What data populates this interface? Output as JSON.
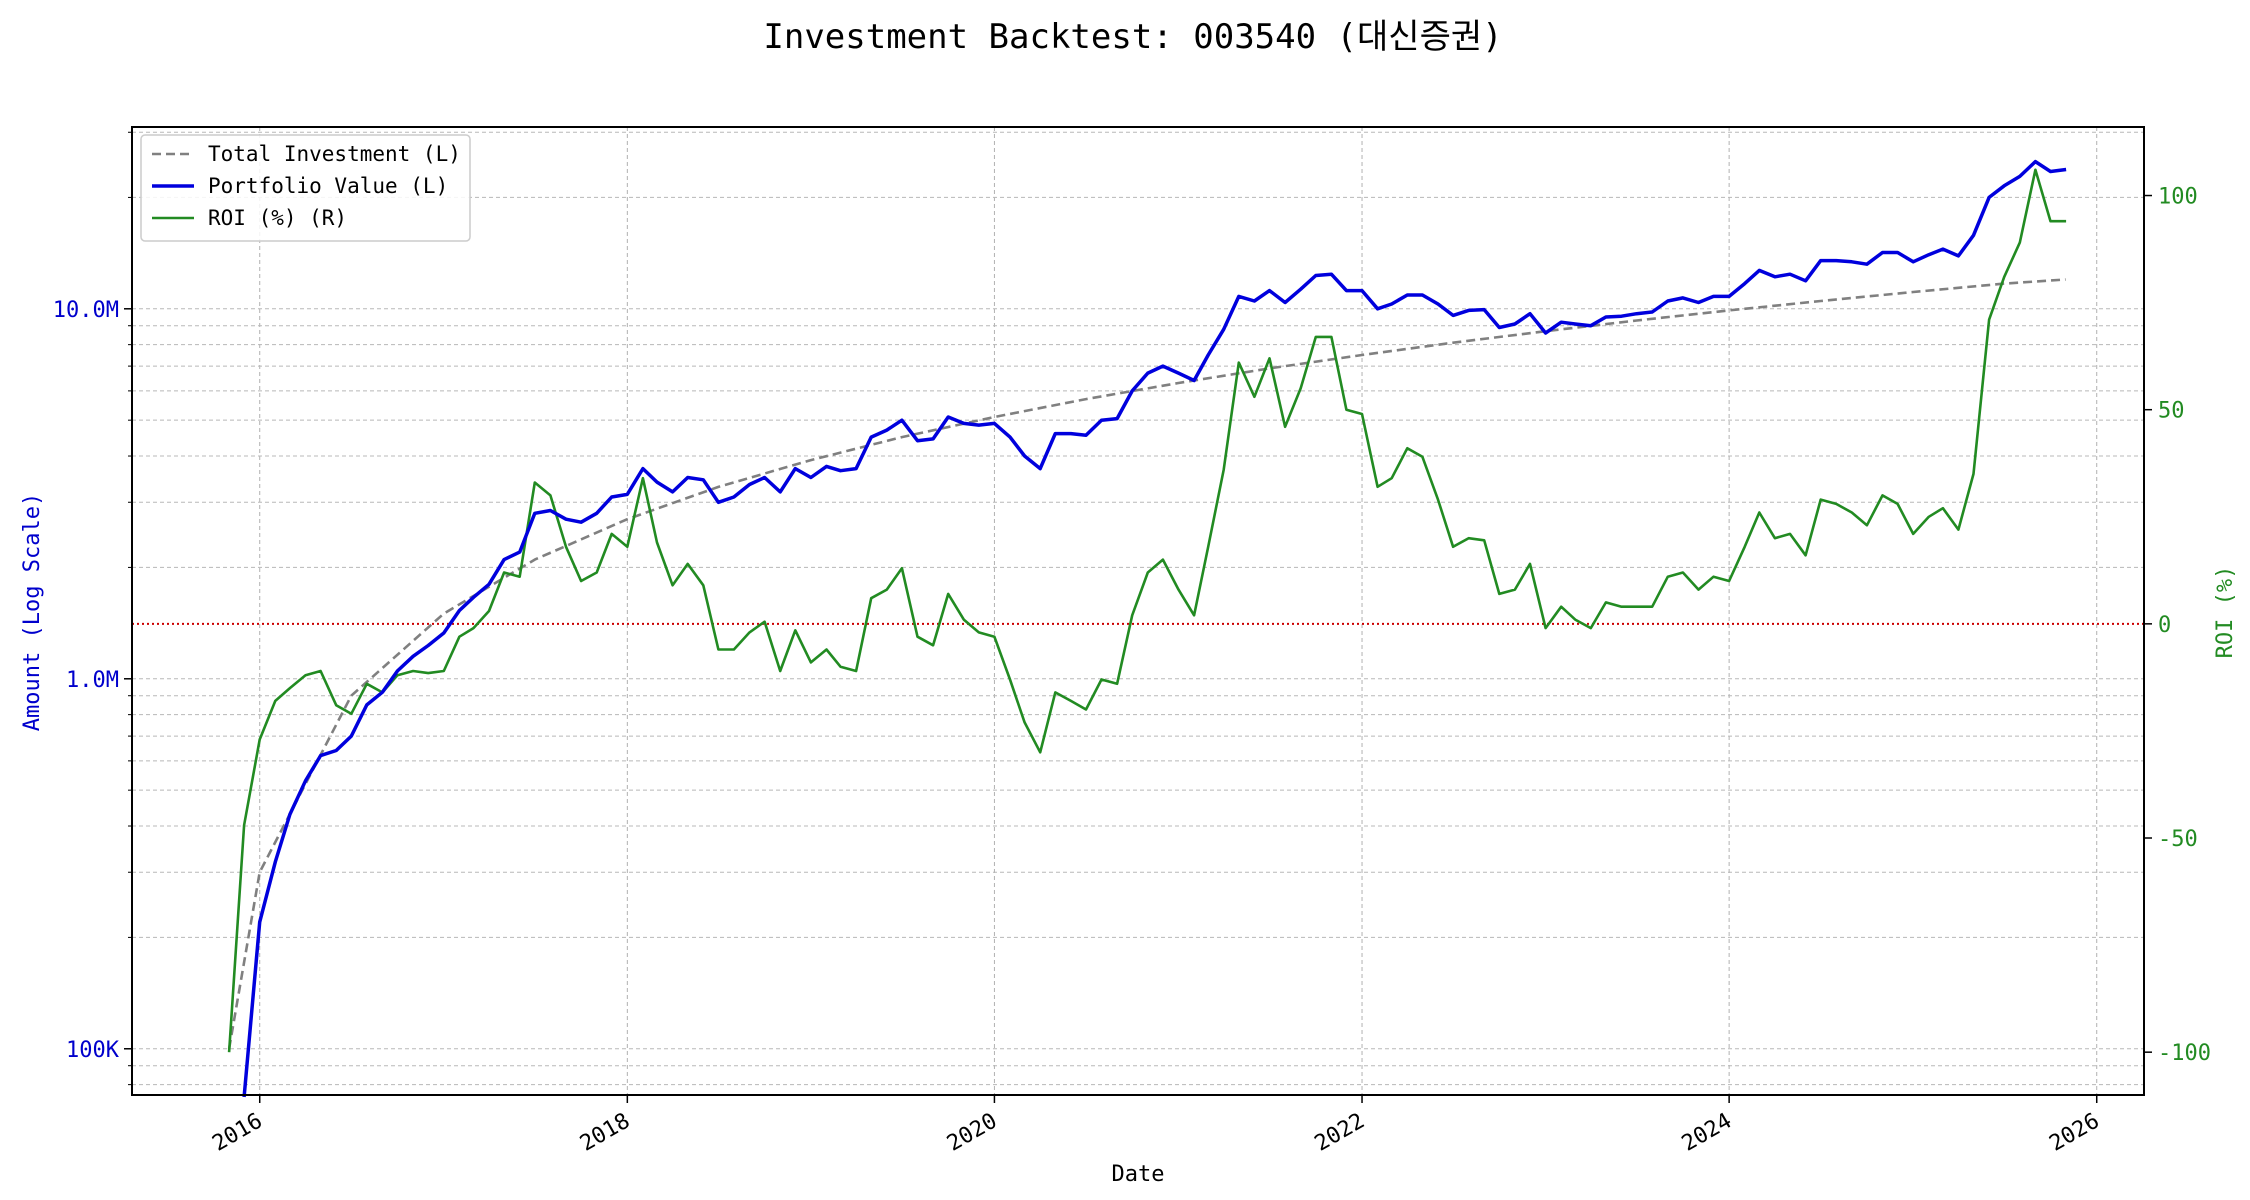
{
  "chart_data": {
    "type": "line",
    "title": "Investment Backtest: 003540 (대신증권)",
    "xlabel": "Date",
    "ylabel_left": "Amount (Log Scale)",
    "ylabel_right": "ROI (%)",
    "left_axis": {
      "scale": "log",
      "ylim": [
        75000,
        31000000
      ],
      "ticks": [
        100000,
        1000000,
        10000000
      ],
      "tick_labels": [
        "100K",
        "1.0M",
        "10.0M"
      ],
      "color": "#0000cc"
    },
    "right_axis": {
      "scale": "linear",
      "ylim": [
        -110,
        116
      ],
      "ticks": [
        -100,
        -50,
        0,
        50,
        100
      ],
      "tick_labels": [
        "-100",
        "-50",
        "0",
        "50",
        "100"
      ],
      "color": "#228b22"
    },
    "x_axis": {
      "type": "date",
      "xlim": [
        "2015-04-22",
        "2026-04-05"
      ],
      "ticks": [
        "2016-01-01",
        "2018-01-01",
        "2020-01-01",
        "2022-01-01",
        "2024-01-01",
        "2026-01-01"
      ],
      "tick_labels": [
        "2016",
        "2018",
        "2020",
        "2022",
        "2024",
        "2026"
      ]
    },
    "grid": true,
    "legend_position": "upper-left",
    "zero_line": {
      "axis": "right",
      "value": 0,
      "color": "#cc0000",
      "style": "dotted"
    },
    "series": [
      {
        "name": "Total Investment (L)",
        "axis": "left",
        "color": "#808080",
        "style": "dashed",
        "points": [
          [
            "2015-11-01",
            100000
          ],
          [
            "2016-01-01",
            300000
          ],
          [
            "2016-07-01",
            900000
          ],
          [
            "2017-01-01",
            1500000
          ],
          [
            "2017-07-01",
            2100000
          ],
          [
            "2018-01-01",
            2700000
          ],
          [
            "2018-07-01",
            3300000
          ],
          [
            "2019-01-01",
            3900000
          ],
          [
            "2019-07-01",
            4500000
          ],
          [
            "2020-01-01",
            5100000
          ],
          [
            "2020-07-01",
            5700000
          ],
          [
            "2021-01-01",
            6300000
          ],
          [
            "2021-07-01",
            6900000
          ],
          [
            "2022-01-01",
            7500000
          ],
          [
            "2022-07-01",
            8100000
          ],
          [
            "2023-01-01",
            8700000
          ],
          [
            "2023-07-01",
            9300000
          ],
          [
            "2024-01-01",
            9900000
          ],
          [
            "2024-07-01",
            10500000
          ],
          [
            "2025-01-01",
            11100000
          ],
          [
            "2025-07-01",
            11700000
          ],
          [
            "2025-10-31",
            12000000
          ]
        ]
      },
      {
        "name": "Portfolio Value (L)",
        "axis": "left",
        "color": "#0000dd",
        "style": "solid",
        "points": [
          [
            "2015-12-01",
            65000
          ],
          [
            "2016-01-01",
            220000
          ],
          [
            "2016-02-01",
            320000
          ],
          [
            "2016-03-01",
            430000
          ],
          [
            "2016-04-01",
            530000
          ],
          [
            "2016-05-01",
            620000
          ],
          [
            "2016-06-01",
            640000
          ],
          [
            "2016-07-01",
            700000
          ],
          [
            "2016-08-01",
            850000
          ],
          [
            "2016-09-01",
            920000
          ],
          [
            "2016-10-01",
            1050000
          ],
          [
            "2016-11-01",
            1150000
          ],
          [
            "2016-12-01",
            1230000
          ],
          [
            "2017-01-01",
            1330000
          ],
          [
            "2017-02-01",
            1530000
          ],
          [
            "2017-03-01",
            1660000
          ],
          [
            "2017-04-01",
            1800000
          ],
          [
            "2017-05-01",
            2100000
          ],
          [
            "2017-06-01",
            2200000
          ],
          [
            "2017-07-01",
            2800000
          ],
          [
            "2017-08-01",
            2850000
          ],
          [
            "2017-09-01",
            2700000
          ],
          [
            "2017-10-01",
            2650000
          ],
          [
            "2017-11-01",
            2800000
          ],
          [
            "2017-12-01",
            3100000
          ],
          [
            "2018-01-01",
            3150000
          ],
          [
            "2018-02-01",
            3700000
          ],
          [
            "2018-03-01",
            3400000
          ],
          [
            "2018-04-01",
            3200000
          ],
          [
            "2018-05-01",
            3500000
          ],
          [
            "2018-06-01",
            3450000
          ],
          [
            "2018-07-01",
            3000000
          ],
          [
            "2018-08-01",
            3100000
          ],
          [
            "2018-09-01",
            3350000
          ],
          [
            "2018-10-01",
            3500000
          ],
          [
            "2018-11-01",
            3200000
          ],
          [
            "2018-12-01",
            3700000
          ],
          [
            "2019-01-01",
            3500000
          ],
          [
            "2019-02-01",
            3750000
          ],
          [
            "2019-03-01",
            3650000
          ],
          [
            "2019-04-01",
            3700000
          ],
          [
            "2019-05-01",
            4500000
          ],
          [
            "2019-06-01",
            4700000
          ],
          [
            "2019-07-01",
            5000000
          ],
          [
            "2019-08-01",
            4400000
          ],
          [
            "2019-09-01",
            4450000
          ],
          [
            "2019-10-01",
            5100000
          ],
          [
            "2019-11-01",
            4900000
          ],
          [
            "2019-12-01",
            4850000
          ],
          [
            "2020-01-01",
            4900000
          ],
          [
            "2020-02-01",
            4500000
          ],
          [
            "2020-03-01",
            4000000
          ],
          [
            "2020-04-01",
            3700000
          ],
          [
            "2020-05-01",
            4600000
          ],
          [
            "2020-06-01",
            4600000
          ],
          [
            "2020-07-01",
            4550000
          ],
          [
            "2020-08-01",
            5000000
          ],
          [
            "2020-09-01",
            5050000
          ],
          [
            "2020-10-01",
            6000000
          ],
          [
            "2020-11-01",
            6700000
          ],
          [
            "2020-12-01",
            7000000
          ],
          [
            "2021-01-01",
            6700000
          ],
          [
            "2021-02-01",
            6400000
          ],
          [
            "2021-03-01",
            7500000
          ],
          [
            "2021-04-01",
            8800000
          ],
          [
            "2021-05-01",
            10800000
          ],
          [
            "2021-06-01",
            10500000
          ],
          [
            "2021-07-01",
            11200000
          ],
          [
            "2021-08-01",
            10400000
          ],
          [
            "2021-09-01",
            11300000
          ],
          [
            "2021-10-01",
            12300000
          ],
          [
            "2021-11-01",
            12400000
          ],
          [
            "2021-12-01",
            11200000
          ],
          [
            "2022-01-01",
            11200000
          ],
          [
            "2022-02-01",
            10000000
          ],
          [
            "2022-03-01",
            10300000
          ],
          [
            "2022-04-01",
            10900000
          ],
          [
            "2022-05-01",
            10900000
          ],
          [
            "2022-06-01",
            10300000
          ],
          [
            "2022-07-01",
            9600000
          ],
          [
            "2022-08-01",
            9900000
          ],
          [
            "2022-09-01",
            9950000
          ],
          [
            "2022-10-01",
            8900000
          ],
          [
            "2022-11-01",
            9100000
          ],
          [
            "2022-12-01",
            9700000
          ],
          [
            "2023-01-01",
            8600000
          ],
          [
            "2023-02-01",
            9200000
          ],
          [
            "2023-03-01",
            9100000
          ],
          [
            "2023-04-01",
            9000000
          ],
          [
            "2023-05-01",
            9500000
          ],
          [
            "2023-06-01",
            9550000
          ],
          [
            "2023-07-01",
            9700000
          ],
          [
            "2023-08-01",
            9800000
          ],
          [
            "2023-09-01",
            10500000
          ],
          [
            "2023-10-01",
            10700000
          ],
          [
            "2023-11-01",
            10400000
          ],
          [
            "2023-12-01",
            10800000
          ],
          [
            "2024-01-01",
            10800000
          ],
          [
            "2024-02-01",
            11700000
          ],
          [
            "2024-03-01",
            12700000
          ],
          [
            "2024-04-01",
            12200000
          ],
          [
            "2024-05-01",
            12400000
          ],
          [
            "2024-06-01",
            11900000
          ],
          [
            "2024-07-01",
            13500000
          ],
          [
            "2024-08-01",
            13500000
          ],
          [
            "2024-09-01",
            13400000
          ],
          [
            "2024-10-01",
            13200000
          ],
          [
            "2024-11-01",
            14200000
          ],
          [
            "2024-12-01",
            14200000
          ],
          [
            "2025-01-01",
            13400000
          ],
          [
            "2025-02-01",
            14000000
          ],
          [
            "2025-03-01",
            14500000
          ],
          [
            "2025-04-01",
            13900000
          ],
          [
            "2025-05-01",
            15800000
          ],
          [
            "2025-06-01",
            20000000
          ],
          [
            "2025-07-01",
            21500000
          ],
          [
            "2025-08-01",
            22800000
          ],
          [
            "2025-09-01",
            25000000
          ],
          [
            "2025-10-01",
            23500000
          ],
          [
            "2025-11-01",
            23800000
          ]
        ]
      },
      {
        "name": "ROI (%) (R)",
        "axis": "right",
        "color": "#228b22",
        "style": "solid",
        "points": [
          [
            "2015-11-01",
            -100
          ],
          [
            "2015-12-01",
            -47
          ],
          [
            "2016-01-01",
            -27
          ],
          [
            "2016-02-01",
            -18
          ],
          [
            "2016-03-01",
            -15
          ],
          [
            "2016-04-01",
            -12
          ],
          [
            "2016-05-01",
            -11
          ],
          [
            "2016-06-01",
            -19
          ],
          [
            "2016-07-01",
            -21
          ],
          [
            "2016-08-01",
            -14
          ],
          [
            "2016-09-01",
            -16
          ],
          [
            "2016-10-01",
            -12
          ],
          [
            "2016-11-01",
            -11
          ],
          [
            "2016-12-01",
            -11.5
          ],
          [
            "2017-01-01",
            -11
          ],
          [
            "2017-02-01",
            -3
          ],
          [
            "2017-03-01",
            -1
          ],
          [
            "2017-04-01",
            3
          ],
          [
            "2017-05-01",
            12
          ],
          [
            "2017-06-01",
            11
          ],
          [
            "2017-07-01",
            33
          ],
          [
            "2017-08-01",
            30
          ],
          [
            "2017-09-01",
            18
          ],
          [
            "2017-10-01",
            10
          ],
          [
            "2017-11-01",
            12
          ],
          [
            "2017-12-01",
            21
          ],
          [
            "2018-01-01",
            18
          ],
          [
            "2018-02-01",
            34
          ],
          [
            "2018-03-01",
            19
          ],
          [
            "2018-04-01",
            9
          ],
          [
            "2018-05-01",
            14
          ],
          [
            "2018-06-01",
            9
          ],
          [
            "2018-07-01",
            -6
          ],
          [
            "2018-08-01",
            -6
          ],
          [
            "2018-09-01",
            -2
          ],
          [
            "2018-10-01",
            0.5
          ],
          [
            "2018-11-01",
            -11
          ],
          [
            "2018-12-01",
            -1.5
          ],
          [
            "2019-01-01",
            -9
          ],
          [
            "2019-02-01",
            -6
          ],
          [
            "2019-03-01",
            -10
          ],
          [
            "2019-04-01",
            -11
          ],
          [
            "2019-05-01",
            6
          ],
          [
            "2019-06-01",
            8
          ],
          [
            "2019-07-01",
            13
          ],
          [
            "2019-08-01",
            -3
          ],
          [
            "2019-09-01",
            -5
          ],
          [
            "2019-10-01",
            7
          ],
          [
            "2019-11-01",
            1
          ],
          [
            "2019-12-01",
            -2
          ],
          [
            "2020-01-01",
            -3
          ],
          [
            "2020-02-01",
            -13
          ],
          [
            "2020-03-01",
            -23
          ],
          [
            "2020-04-01",
            -30
          ],
          [
            "2020-05-01",
            -16
          ],
          [
            "2020-06-01",
            -18
          ],
          [
            "2020-07-01",
            -20
          ],
          [
            "2020-08-01",
            -13
          ],
          [
            "2020-09-01",
            -14
          ],
          [
            "2020-10-01",
            2
          ],
          [
            "2020-11-01",
            12
          ],
          [
            "2020-12-01",
            15
          ],
          [
            "2021-01-01",
            8
          ],
          [
            "2021-02-01",
            2
          ],
          [
            "2021-03-01",
            18
          ],
          [
            "2021-04-01",
            36
          ],
          [
            "2021-05-01",
            61
          ],
          [
            "2021-06-01",
            53
          ],
          [
            "2021-07-01",
            62
          ],
          [
            "2021-08-01",
            46
          ],
          [
            "2021-09-01",
            55
          ],
          [
            "2021-10-01",
            67
          ],
          [
            "2021-11-01",
            67
          ],
          [
            "2021-12-01",
            50
          ],
          [
            "2022-01-01",
            49
          ],
          [
            "2022-02-01",
            32
          ],
          [
            "2022-03-01",
            34
          ],
          [
            "2022-04-01",
            41
          ],
          [
            "2022-05-01",
            39
          ],
          [
            "2022-06-01",
            29
          ],
          [
            "2022-07-01",
            18
          ],
          [
            "2022-08-01",
            20
          ],
          [
            "2022-09-01",
            19.5
          ],
          [
            "2022-10-01",
            7
          ],
          [
            "2022-11-01",
            8
          ],
          [
            "2022-12-01",
            14
          ],
          [
            "2023-01-01",
            -1
          ],
          [
            "2023-02-01",
            4
          ],
          [
            "2023-03-01",
            1
          ],
          [
            "2023-04-01",
            -1
          ],
          [
            "2023-05-01",
            5
          ],
          [
            "2023-06-01",
            4
          ],
          [
            "2023-07-01",
            4
          ],
          [
            "2023-08-01",
            4
          ],
          [
            "2023-09-01",
            11
          ],
          [
            "2023-10-01",
            12
          ],
          [
            "2023-11-01",
            8
          ],
          [
            "2023-12-01",
            11
          ],
          [
            "2024-01-01",
            10
          ],
          [
            "2024-02-01",
            18
          ],
          [
            "2024-03-01",
            26
          ],
          [
            "2024-04-01",
            20
          ],
          [
            "2024-05-01",
            21
          ],
          [
            "2024-06-01",
            16
          ],
          [
            "2024-07-01",
            29
          ],
          [
            "2024-08-01",
            28
          ],
          [
            "2024-09-01",
            26
          ],
          [
            "2024-10-01",
            23
          ],
          [
            "2024-11-01",
            30
          ],
          [
            "2024-12-01",
            28
          ],
          [
            "2025-01-01",
            21
          ],
          [
            "2025-02-01",
            25
          ],
          [
            "2025-03-01",
            27
          ],
          [
            "2025-04-01",
            22
          ],
          [
            "2025-05-01",
            35
          ],
          [
            "2025-06-01",
            71
          ],
          [
            "2025-07-01",
            81
          ],
          [
            "2025-08-01",
            89
          ],
          [
            "2025-09-01",
            106
          ],
          [
            "2025-10-01",
            94
          ],
          [
            "2025-11-01",
            94
          ]
        ]
      }
    ]
  }
}
